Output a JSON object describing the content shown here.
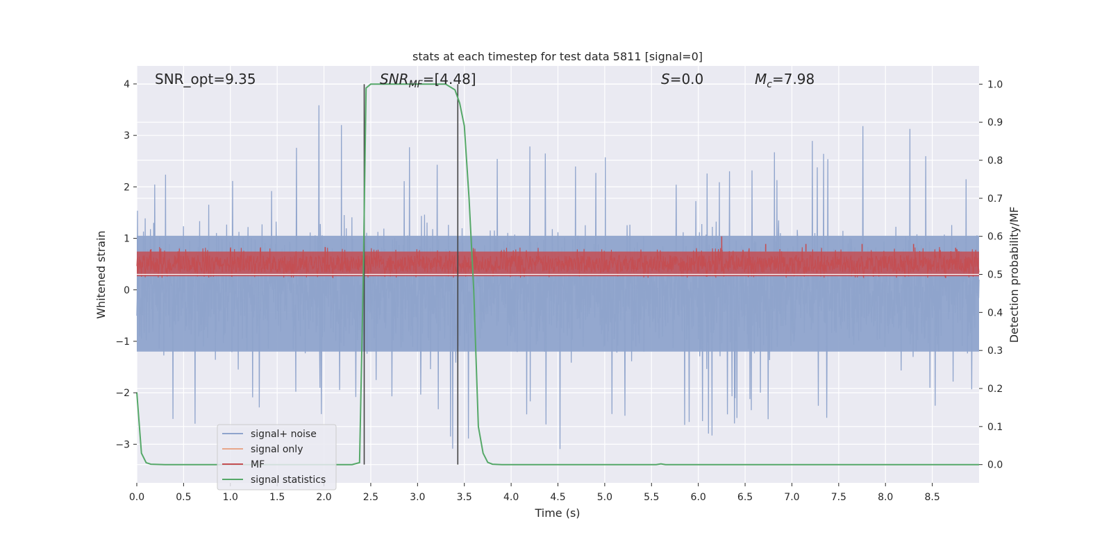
{
  "chart_data": {
    "type": "line",
    "title": "stats at each timestep for test data 5811 [signal=0]",
    "xlabel": "Time (s)",
    "ylabel": "Whitened strain",
    "y2label": "Detection probability/MF",
    "xlim": [
      0.0,
      9.0
    ],
    "ylim": [
      -3.75,
      4.35
    ],
    "y2lim": [
      -0.048,
      1.048
    ],
    "xticks": [
      "0.0",
      "0.5",
      "1.0",
      "1.5",
      "2.0",
      "2.5",
      "3.0",
      "3.5",
      "4.0",
      "4.5",
      "5.0",
      "5.5",
      "6.0",
      "6.5",
      "7.0",
      "7.5",
      "8.0",
      "8.5"
    ],
    "yticks": [
      "4",
      "3",
      "2",
      "1",
      "0",
      "−1",
      "−2",
      "−3"
    ],
    "y2ticks": [
      "1.0",
      "0.9",
      "0.8",
      "0.7",
      "0.6",
      "0.5",
      "0.4",
      "0.3",
      "0.2",
      "0.1",
      "0.0"
    ],
    "grid": true,
    "legend_position": "lower-left",
    "annotations": {
      "snr_opt": "SNR_opt=9.35",
      "snr_mf_sym": "SNR",
      "snr_mf_sub": "MF",
      "snr_mf_val": "=[4.48]",
      "s_sym": "S",
      "s_val": "=0.0",
      "mc_sym": "M",
      "mc_sub": "c",
      "mc_val": "=7.98"
    },
    "vlines": [
      2.43,
      3.43
    ],
    "colors": {
      "noise": "#8fa4cc",
      "signal_only": "#e8a68a",
      "mf": "#c44e52",
      "stat": "#55a868",
      "vline": "#444444",
      "axes_bg": "#eaeaf2",
      "grid": "#ffffff"
    },
    "series": [
      {
        "name": "signal+ noise",
        "envelope": {
          "x": [
            0.0,
            0.5,
            1.0,
            1.5,
            2.0,
            2.5,
            3.0,
            3.5,
            4.0,
            4.5,
            5.0,
            5.5,
            6.0,
            6.5,
            7.0,
            7.5,
            8.0,
            8.5,
            9.0
          ],
          "upper": [
            1.6,
            2.8,
            2.2,
            2.6,
            3.9,
            2.7,
            2.8,
            2.6,
            3.1,
            2.9,
            2.7,
            2.1,
            2.3,
            2.4,
            2.9,
            3.0,
            3.4,
            2.9,
            2.0
          ],
          "lower": [
            -2.5,
            -2.6,
            -2.7,
            -2.4,
            -2.5,
            -2.3,
            -2.2,
            -3.4,
            -2.3,
            -3.6,
            -2.5,
            -3.3,
            -3.1,
            -2.5,
            -2.6,
            -2.6,
            -2.7,
            -2.4,
            -2.1
          ]
        }
      },
      {
        "name": "signal only",
        "values": []
      },
      {
        "name": "MF",
        "baseline": 0.5,
        "band": [
          0.495,
          0.56
        ],
        "spike_peaks": [
          {
            "x": 6.25,
            "y": 0.6
          },
          {
            "x": 6.72,
            "y": 0.58
          },
          {
            "x": 7.15,
            "y": 0.58
          },
          {
            "x": 7.75,
            "y": 0.58
          },
          {
            "x": 8.3,
            "y": 0.58
          },
          {
            "x": 8.75,
            "y": 0.57
          }
        ]
      },
      {
        "name": "signal statistics",
        "x": [
          0.0,
          0.05,
          0.1,
          0.15,
          0.3,
          1.0,
          2.0,
          2.3,
          2.38,
          2.42,
          2.45,
          2.5,
          2.6,
          3.0,
          3.3,
          3.4,
          3.45,
          3.5,
          3.55,
          3.6,
          3.65,
          3.7,
          3.75,
          3.8,
          3.9,
          4.0,
          5.0,
          5.55,
          5.6,
          5.65,
          6.0,
          8.0,
          9.0
        ],
        "y": [
          0.19,
          0.03,
          0.005,
          0.001,
          0.0,
          0.0,
          0.0,
          0.0,
          0.005,
          0.5,
          0.99,
          1.0,
          1.0,
          1.0,
          1.0,
          0.985,
          0.95,
          0.89,
          0.7,
          0.46,
          0.1,
          0.03,
          0.006,
          0.001,
          0.0,
          0.0,
          0.0,
          0.0,
          0.002,
          0.0,
          0.0,
          0.0,
          0.0
        ]
      }
    ]
  }
}
